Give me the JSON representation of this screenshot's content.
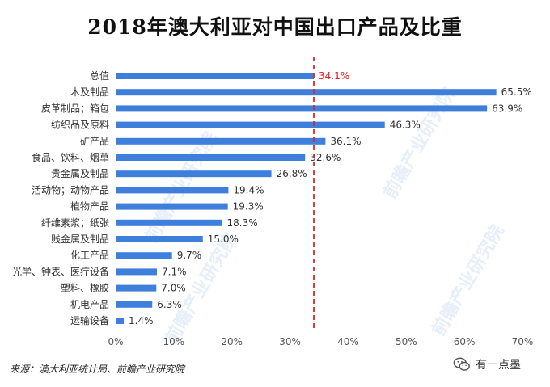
{
  "title": "2018年澳大利亚对中国出口产品及比重",
  "source": "来源：澳大利亚统计局、前瞻产业研究院",
  "watermark": "前瞻产业研究院",
  "wechat_label": "有一点墨",
  "colors": {
    "bar": "#3e7fdc",
    "reference_line": "#d62a2a",
    "highlight_label": "#e02020",
    "label": "#333333"
  },
  "chart_data": {
    "type": "bar",
    "orientation": "horizontal",
    "title": "2018年澳大利亚对中国出口产品及比重",
    "categories": [
      "总值",
      "木及制品",
      "皮革制品；箱包",
      "纺织品及原料",
      "矿产品",
      "食品、饮料、烟草",
      "贵金属及制品",
      "活动物；动物产品",
      "植物产品",
      "纤维素浆；纸张",
      "贱金属及制品",
      "化工产品",
      "光学、钟表、医疗设备",
      "塑料、橡胶",
      "机电产品",
      "运输设备"
    ],
    "values": [
      34.1,
      65.5,
      63.9,
      46.3,
      36.1,
      32.6,
      26.8,
      19.4,
      19.3,
      18.3,
      15.0,
      9.7,
      7.1,
      7.0,
      6.3,
      1.4
    ],
    "value_labels": [
      "34.1%",
      "65.5%",
      "63.9%",
      "46.3%",
      "36.1%",
      "32.6%",
      "26.8%",
      "19.4%",
      "19.3%",
      "18.3%",
      "15.0%",
      "9.7%",
      "7.1%",
      "7.0%",
      "6.3%",
      "1.4%"
    ],
    "highlight_index": 0,
    "reference_line": 34.1,
    "xlim": [
      0,
      70
    ],
    "xticks": [
      "0%",
      "10%",
      "20%",
      "30%",
      "40%",
      "50%",
      "60%",
      "70%"
    ],
    "grid": false,
    "legend": "none"
  }
}
